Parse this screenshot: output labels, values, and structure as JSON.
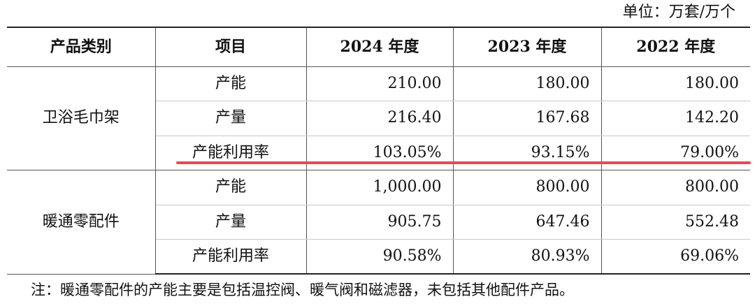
{
  "unit_label": "单位：万套/万个",
  "headers": [
    "产品类别",
    "项目",
    "2024 年度",
    "2023 年度",
    "2022 年度"
  ],
  "groups": [
    {
      "category": "卫浴毛巾架",
      "rows": [
        {
          "item": "产能",
          "y2024": "210.00",
          "y2023": "180.00",
          "y2022": "180.00"
        },
        {
          "item": "产量",
          "y2024": "216.40",
          "y2023": "167.68",
          "y2022": "142.20"
        },
        {
          "item": "产能利用率",
          "y2024": "103.05%",
          "y2023": "93.15%",
          "y2022": "79.00%"
        }
      ]
    },
    {
      "category": "暖通零配件",
      "rows": [
        {
          "item": "产能",
          "y2024": "1,000.00",
          "y2023": "800.00",
          "y2022": "800.00"
        },
        {
          "item": "产量",
          "y2024": "905.75",
          "y2023": "647.46",
          "y2022": "552.48"
        },
        {
          "item": "产能利用率",
          "y2024": "90.58%",
          "y2023": "80.93%",
          "y2022": "69.06%"
        }
      ]
    }
  ],
  "note": "注：暖通零配件的产能主要是包括温控阀、暖气阀和磁滤器，未包括其他配件产品。",
  "highlight_color": "#e8485a"
}
